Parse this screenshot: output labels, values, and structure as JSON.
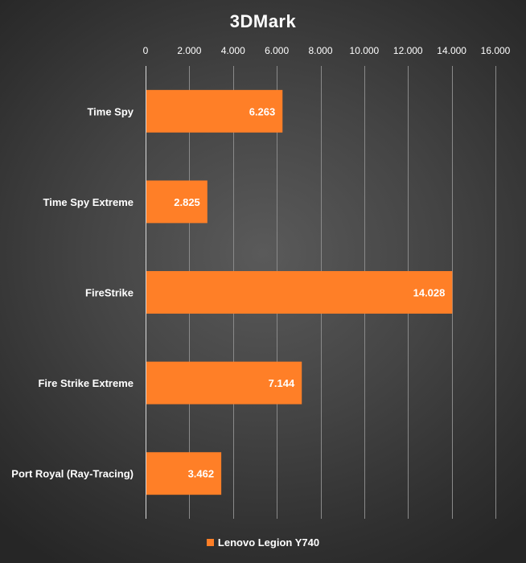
{
  "chart_data": {
    "type": "bar",
    "orientation": "horizontal",
    "title": "3DMark",
    "categories": [
      "Time Spy",
      "Time Spy Extreme",
      "FireStrike",
      "Fire Strike Extreme",
      "Port Royal (Ray-Tracing)"
    ],
    "series": [
      {
        "name": "Lenovo Legion Y740",
        "values": [
          6263,
          2825,
          14028,
          7144,
          3462
        ],
        "labels": [
          "6.263",
          "2.825",
          "14.028",
          "7.144",
          "3.462"
        ],
        "color": "#ff7f27"
      }
    ],
    "xlim": [
      0,
      16000
    ],
    "ticks": [
      0,
      2000,
      4000,
      6000,
      8000,
      10000,
      12000,
      14000,
      16000
    ],
    "tick_labels": [
      "0",
      "2.000",
      "4.000",
      "6.000",
      "8.000",
      "10.000",
      "12.000",
      "14.000",
      "16.000"
    ],
    "axis_position": "top",
    "grid": true,
    "legend": "bottom",
    "colors": {
      "bar": "#ff7f27",
      "grid": "#8a8a8a",
      "background": "#3c3c3c",
      "text": "#ffffff"
    }
  }
}
